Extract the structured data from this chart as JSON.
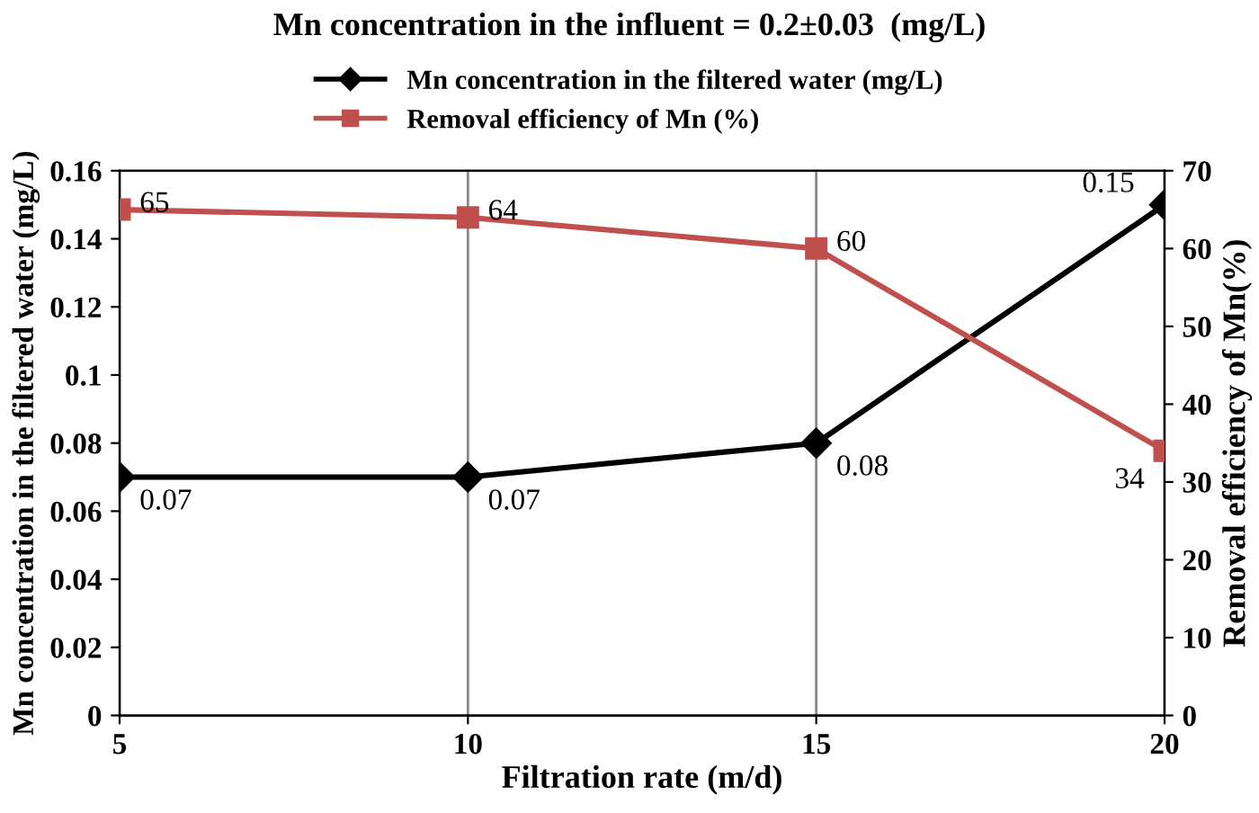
{
  "chart_data": {
    "type": "line",
    "title": "Mn concentration in the influent = 0.2±0.03  (mg/L)",
    "xlabel": "Filtration rate (m/d)",
    "ylabel": "Mn concentration in the filtered water (mg/L)",
    "y2label": "Removal efficiency of Mn(%)",
    "x": [
      5,
      10,
      15,
      20
    ],
    "series": [
      {
        "name": "Mn concentration in the filtered water (mg/L)",
        "color": "#000000",
        "marker": "diamond",
        "values": [
          0.07,
          0.07,
          0.08,
          0.15
        ]
      },
      {
        "name": "Removal efficiency of Mn (%)",
        "color": "#c0504d",
        "marker": "square",
        "axis": "y2",
        "values": [
          65,
          64,
          60,
          34
        ]
      }
    ],
    "xlim": [
      5,
      20
    ],
    "xticks": [
      5,
      10,
      15,
      20
    ],
    "ylim": [
      0,
      0.16
    ],
    "yticks": [
      0,
      0.02,
      0.04,
      0.06,
      0.08,
      0.1,
      0.12,
      0.14,
      0.16
    ],
    "y2lim": [
      0,
      70
    ],
    "y2ticks": [
      0,
      10,
      20,
      30,
      40,
      50,
      60,
      70
    ],
    "grid": "x",
    "legend": "top",
    "data_labels": true,
    "line_style": "solid"
  }
}
